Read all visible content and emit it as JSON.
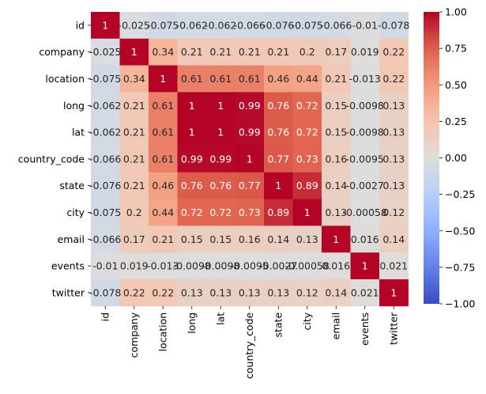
{
  "chart_data": {
    "type": "heatmap",
    "title": "",
    "xlabel": "",
    "ylabel": "",
    "rows": [
      "id",
      "company",
      "location",
      "long",
      "lat",
      "country_code",
      "state",
      "city",
      "email",
      "events",
      "twitter"
    ],
    "columns": [
      "id",
      "company",
      "location",
      "long",
      "lat",
      "country_code",
      "state",
      "city",
      "email",
      "events",
      "twitter"
    ],
    "values": [
      [
        1,
        -0.025,
        -0.075,
        -0.062,
        -0.062,
        -0.066,
        -0.076,
        -0.075,
        -0.066,
        -0.01,
        -0.078
      ],
      [
        -0.025,
        1,
        0.34,
        0.21,
        0.21,
        0.21,
        0.21,
        0.2,
        0.17,
        0.019,
        0.22
      ],
      [
        -0.075,
        0.34,
        1,
        0.61,
        0.61,
        0.61,
        0.46,
        0.44,
        0.21,
        -0.013,
        0.22
      ],
      [
        -0.062,
        0.21,
        0.61,
        1,
        1,
        0.99,
        0.76,
        0.72,
        0.15,
        -0.0098,
        0.13
      ],
      [
        -0.062,
        0.21,
        0.61,
        1,
        1,
        0.99,
        0.76,
        0.72,
        0.15,
        -0.0098,
        0.13
      ],
      [
        -0.066,
        0.21,
        0.61,
        0.99,
        0.99,
        1,
        0.77,
        0.73,
        0.16,
        -0.0095,
        0.13
      ],
      [
        -0.076,
        0.21,
        0.46,
        0.76,
        0.76,
        0.77,
        1,
        0.89,
        0.14,
        -0.0027,
        0.13
      ],
      [
        -0.075,
        0.2,
        0.44,
        0.72,
        0.72,
        0.73,
        0.89,
        1,
        0.13,
        -0.00058,
        0.12
      ],
      [
        -0.066,
        0.17,
        0.21,
        0.15,
        0.15,
        0.16,
        0.14,
        0.13,
        1,
        0.016,
        0.14
      ],
      [
        -0.01,
        0.019,
        -0.013,
        -0.0098,
        -0.0098,
        -0.0095,
        -0.0027,
        -0.00058,
        0.016,
        1,
        0.021
      ],
      [
        -0.078,
        0.22,
        0.22,
        0.13,
        0.13,
        0.13,
        0.13,
        0.12,
        0.14,
        0.021,
        1
      ]
    ],
    "labels": [
      [
        "1",
        "-0.025",
        "-0.075",
        "-0.062",
        "-0.062",
        "-0.066",
        "-0.076",
        "-0.075",
        "-0.066",
        "-0.01",
        "-0.078"
      ],
      [
        "-0.025",
        "1",
        "0.34",
        "0.21",
        "0.21",
        "0.21",
        "0.21",
        "0.2",
        "0.17",
        "0.019",
        "0.22"
      ],
      [
        "-0.075",
        "0.34",
        "1",
        "0.61",
        "0.61",
        "0.61",
        "0.46",
        "0.44",
        "0.21",
        "-0.013",
        "0.22"
      ],
      [
        "-0.062",
        "0.21",
        "0.61",
        "1",
        "1",
        "0.99",
        "0.76",
        "0.72",
        "0.15",
        "-0.0098",
        "0.13"
      ],
      [
        "-0.062",
        "0.21",
        "0.61",
        "1",
        "1",
        "0.99",
        "0.76",
        "0.72",
        "0.15",
        "-0.0098",
        "0.13"
      ],
      [
        "-0.066",
        "0.21",
        "0.61",
        "0.99",
        "0.99",
        "1",
        "0.77",
        "0.73",
        "0.16",
        "-0.0095",
        "0.13"
      ],
      [
        "-0.076",
        "0.21",
        "0.46",
        "0.76",
        "0.76",
        "0.77",
        "1",
        "0.89",
        "0.14",
        "-0.0027",
        "0.13"
      ],
      [
        "-0.075",
        "0.2",
        "0.44",
        "0.72",
        "0.72",
        "0.73",
        "0.89",
        "1",
        "0.13",
        "-0.00058",
        "0.12"
      ],
      [
        "-0.066",
        "0.17",
        "0.21",
        "0.15",
        "0.15",
        "0.16",
        "0.14",
        "0.13",
        "1",
        "0.016",
        "0.14"
      ],
      [
        "-0.01",
        "0.019",
        "-0.013",
        "-0.0098",
        "-0.0098",
        "-0.0095",
        "-0.0027",
        "-0.00058",
        "0.016",
        "1",
        "0.021"
      ],
      [
        "-0.078",
        "0.22",
        "0.22",
        "0.13",
        "0.13",
        "0.13",
        "0.13",
        "0.12",
        "0.14",
        "0.021",
        "1"
      ]
    ],
    "colormap": "coolwarm",
    "vmin": -1,
    "vmax": 1,
    "colorbar": {
      "ticks": [
        1.0,
        0.75,
        0.5,
        0.25,
        0.0,
        -0.25,
        -0.5,
        -0.75,
        -1.0
      ],
      "tick_labels": [
        "1.00",
        "0.75",
        "0.50",
        "0.25",
        "0.00",
        "−0.25",
        "−0.50",
        "−0.75",
        "−1.00"
      ],
      "placement": "right"
    }
  }
}
